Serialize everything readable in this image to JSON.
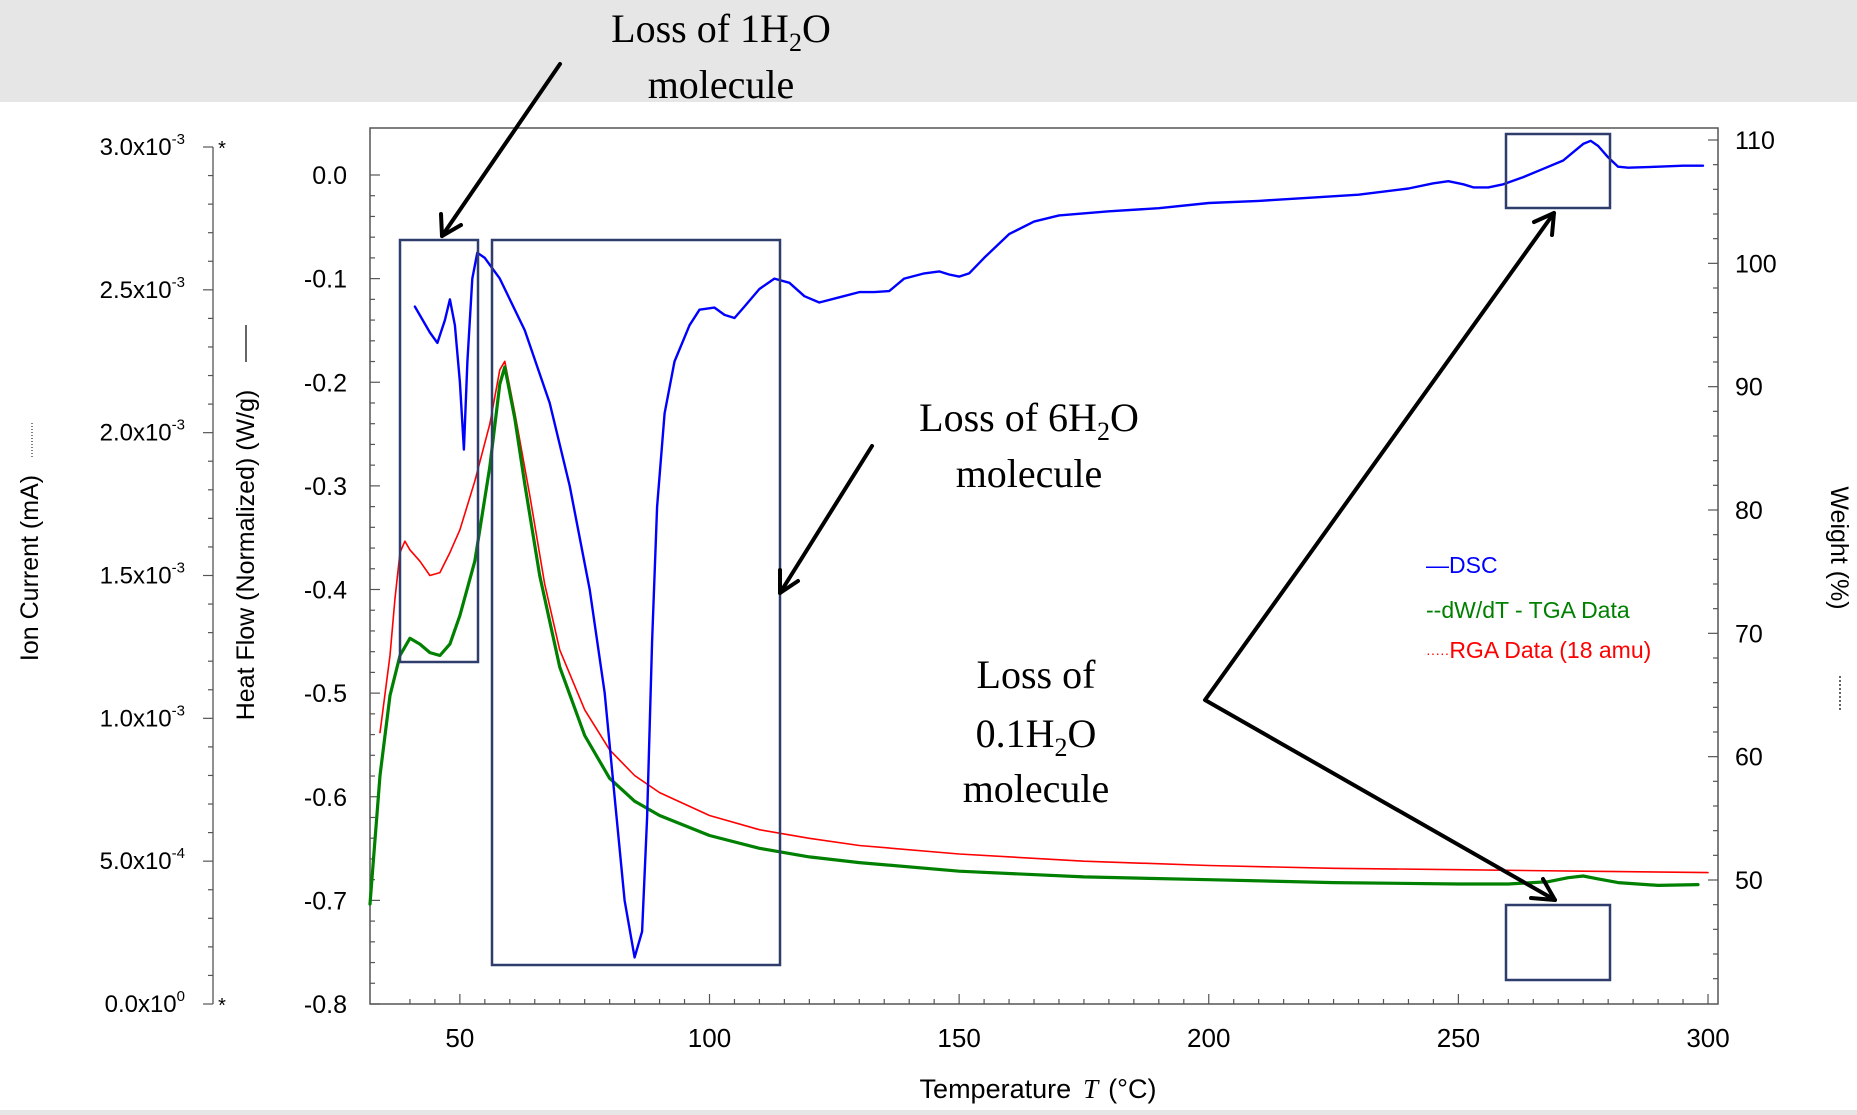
{
  "chart_data": {
    "type": "line",
    "x_axis": {
      "label_main": "Temperature",
      "label_var": "T",
      "label_unit": "(°C)",
      "ticks": [
        50,
        100,
        150,
        200,
        250,
        300
      ],
      "range": [
        32,
        302
      ]
    },
    "y_ion": {
      "label": "Ion Current  (mA)",
      "range": [
        0,
        0.003
      ],
      "ticks": [
        {
          "value": 0.0,
          "mant": "0.0x10",
          "exp": "0"
        },
        {
          "value": 0.0005,
          "mant": "5.0x10",
          "exp": "-4"
        },
        {
          "value": 0.001,
          "mant": "1.0x10",
          "exp": "-3"
        },
        {
          "value": 0.0015,
          "mant": "1.5x10",
          "exp": "-3"
        },
        {
          "value": 0.002,
          "mant": "2.0x10",
          "exp": "-3"
        },
        {
          "value": 0.0025,
          "mant": "2.5x10",
          "exp": "-3"
        },
        {
          "value": 0.003,
          "mant": "3.0x10",
          "exp": "-3"
        }
      ]
    },
    "y_heat": {
      "label": "Heat Flow (Normalized)  (W/g)",
      "range": [
        -0.8,
        0.05
      ],
      "ticks": [
        "0.0",
        "-0.1",
        "-0.2",
        "-0.3",
        "-0.4",
        "-0.5",
        "-0.6",
        "-0.7",
        "-0.8"
      ],
      "tick_values": [
        0.0,
        -0.1,
        -0.2,
        -0.3,
        -0.4,
        -0.5,
        -0.6,
        -0.7,
        -0.8
      ]
    },
    "y_weight": {
      "label": "Weight  (%)",
      "range": [
        40.2,
        110.5
      ],
      "ticks": [
        "110",
        "100",
        "90",
        "80",
        "70",
        "60",
        "50"
      ],
      "tick_values": [
        110,
        100,
        90,
        80,
        70,
        60,
        50
      ]
    },
    "series": [
      {
        "name": "DSC",
        "color": "#0000ff",
        "axis": "heat",
        "legend_prefix": "—",
        "points": [
          [
            41,
            -0.127
          ],
          [
            44,
            -0.152
          ],
          [
            45.5,
            -0.162
          ],
          [
            47,
            -0.14
          ],
          [
            48,
            -0.12
          ],
          [
            49,
            -0.145
          ],
          [
            50,
            -0.2
          ],
          [
            50.8,
            -0.265
          ],
          [
            51.5,
            -0.18
          ],
          [
            52.5,
            -0.1
          ],
          [
            53.5,
            -0.075
          ],
          [
            55,
            -0.08
          ],
          [
            58,
            -0.1
          ],
          [
            63,
            -0.15
          ],
          [
            68,
            -0.22
          ],
          [
            72,
            -0.3
          ],
          [
            76,
            -0.4
          ],
          [
            79,
            -0.5
          ],
          [
            81,
            -0.6
          ],
          [
            83,
            -0.7
          ],
          [
            85,
            -0.755
          ],
          [
            86.5,
            -0.73
          ],
          [
            87.5,
            -0.62
          ],
          [
            88.5,
            -0.45
          ],
          [
            89.5,
            -0.32
          ],
          [
            91,
            -0.23
          ],
          [
            93,
            -0.18
          ],
          [
            96,
            -0.145
          ],
          [
            98,
            -0.13
          ],
          [
            101,
            -0.128
          ],
          [
            103,
            -0.135
          ],
          [
            105,
            -0.138
          ],
          [
            107,
            -0.127
          ],
          [
            110,
            -0.11
          ],
          [
            113,
            -0.1
          ],
          [
            116,
            -0.104
          ],
          [
            119,
            -0.117
          ],
          [
            122,
            -0.123
          ],
          [
            126,
            -0.118
          ],
          [
            130,
            -0.113
          ],
          [
            133,
            -0.113
          ],
          [
            136,
            -0.112
          ],
          [
            139,
            -0.1
          ],
          [
            143,
            -0.095
          ],
          [
            146,
            -0.093
          ],
          [
            148,
            -0.096
          ],
          [
            150,
            -0.098
          ],
          [
            152,
            -0.095
          ],
          [
            155,
            -0.08
          ],
          [
            160,
            -0.057
          ],
          [
            165,
            -0.045
          ],
          [
            170,
            -0.039
          ],
          [
            180,
            -0.035
          ],
          [
            190,
            -0.032
          ],
          [
            200,
            -0.027
          ],
          [
            210,
            -0.025
          ],
          [
            220,
            -0.022
          ],
          [
            230,
            -0.019
          ],
          [
            240,
            -0.013
          ],
          [
            245,
            -0.008
          ],
          [
            248,
            -0.006
          ],
          [
            251,
            -0.009
          ],
          [
            253,
            -0.012
          ],
          [
            256,
            -0.012
          ],
          [
            259,
            -0.009
          ],
          [
            263,
            -0.002
          ],
          [
            267,
            0.006
          ],
          [
            271,
            0.014
          ],
          [
            273,
            0.022
          ],
          [
            275,
            0.03
          ],
          [
            276.5,
            0.033
          ],
          [
            278,
            0.028
          ],
          [
            280,
            0.017
          ],
          [
            282,
            0.008
          ],
          [
            284,
            0.007
          ],
          [
            290,
            0.008
          ],
          [
            295,
            0.009
          ],
          [
            299,
            0.009
          ]
        ]
      },
      {
        "name": "dW/dT - TGA Data",
        "color": "#008000",
        "axis": "ion",
        "legend_prefix": "--",
        "points": [
          [
            32,
            0.00035
          ],
          [
            34,
            0.0008
          ],
          [
            36,
            0.00108
          ],
          [
            38,
            0.00122
          ],
          [
            40,
            0.00128
          ],
          [
            42,
            0.00126
          ],
          [
            44,
            0.00123
          ],
          [
            46,
            0.00122
          ],
          [
            48,
            0.00126
          ],
          [
            50,
            0.00136
          ],
          [
            53,
            0.00155
          ],
          [
            56,
            0.00188
          ],
          [
            58,
            0.00217
          ],
          [
            59,
            0.00223
          ],
          [
            61,
            0.00205
          ],
          [
            63,
            0.00182
          ],
          [
            66,
            0.0015
          ],
          [
            70,
            0.00118
          ],
          [
            75,
            0.00094
          ],
          [
            80,
            0.00079
          ],
          [
            85,
            0.00071
          ],
          [
            90,
            0.00066
          ],
          [
            100,
            0.00059
          ],
          [
            110,
            0.000545
          ],
          [
            120,
            0.000515
          ],
          [
            130,
            0.000495
          ],
          [
            150,
            0.000465
          ],
          [
            175,
            0.000445
          ],
          [
            200,
            0.000435
          ],
          [
            225,
            0.000425
          ],
          [
            250,
            0.00042
          ],
          [
            260,
            0.00042
          ],
          [
            268,
            0.000428
          ],
          [
            272,
            0.000442
          ],
          [
            275,
            0.000448
          ],
          [
            278,
            0.000438
          ],
          [
            282,
            0.000425
          ],
          [
            290,
            0.000415
          ],
          [
            298,
            0.000418
          ]
        ]
      },
      {
        "name": "RGA Data (18 amu)",
        "color": "#ff0000",
        "axis": "ion",
        "legend_prefix": "·····",
        "points": [
          [
            34,
            0.00095
          ],
          [
            36,
            0.00122
          ],
          [
            37,
            0.00142
          ],
          [
            38,
            0.00158
          ],
          [
            39,
            0.00162
          ],
          [
            40,
            0.00159
          ],
          [
            42,
            0.00155
          ],
          [
            44,
            0.0015
          ],
          [
            46,
            0.00151
          ],
          [
            48,
            0.00158
          ],
          [
            50,
            0.00166
          ],
          [
            53,
            0.00183
          ],
          [
            56,
            0.00203
          ],
          [
            58,
            0.00222
          ],
          [
            59,
            0.00225
          ],
          [
            61,
            0.00207
          ],
          [
            64,
            0.00178
          ],
          [
            67,
            0.00147
          ],
          [
            70,
            0.00124
          ],
          [
            75,
            0.00103
          ],
          [
            80,
            0.00089
          ],
          [
            85,
            0.0008
          ],
          [
            90,
            0.00074
          ],
          [
            100,
            0.00066
          ],
          [
            110,
            0.00061
          ],
          [
            120,
            0.00058
          ],
          [
            130,
            0.000555
          ],
          [
            150,
            0.000525
          ],
          [
            175,
            0.0005
          ],
          [
            200,
            0.000485
          ],
          [
            225,
            0.000475
          ],
          [
            250,
            0.00047
          ],
          [
            275,
            0.000465
          ],
          [
            300,
            0.00046
          ]
        ]
      }
    ],
    "legend_position": "right",
    "annotations": {
      "a1": {
        "text1": "Loss of 1H",
        "sub": "2",
        "text2": "O",
        "line2": "molecule"
      },
      "a2": {
        "text1": "Loss of 6H",
        "sub": "2",
        "text2": "O",
        "line2": "molecule"
      },
      "a3": {
        "line1": "Loss of",
        "text1": "0.1H",
        "sub": "2",
        "text2": "O",
        "line3": "molecule"
      }
    }
  }
}
